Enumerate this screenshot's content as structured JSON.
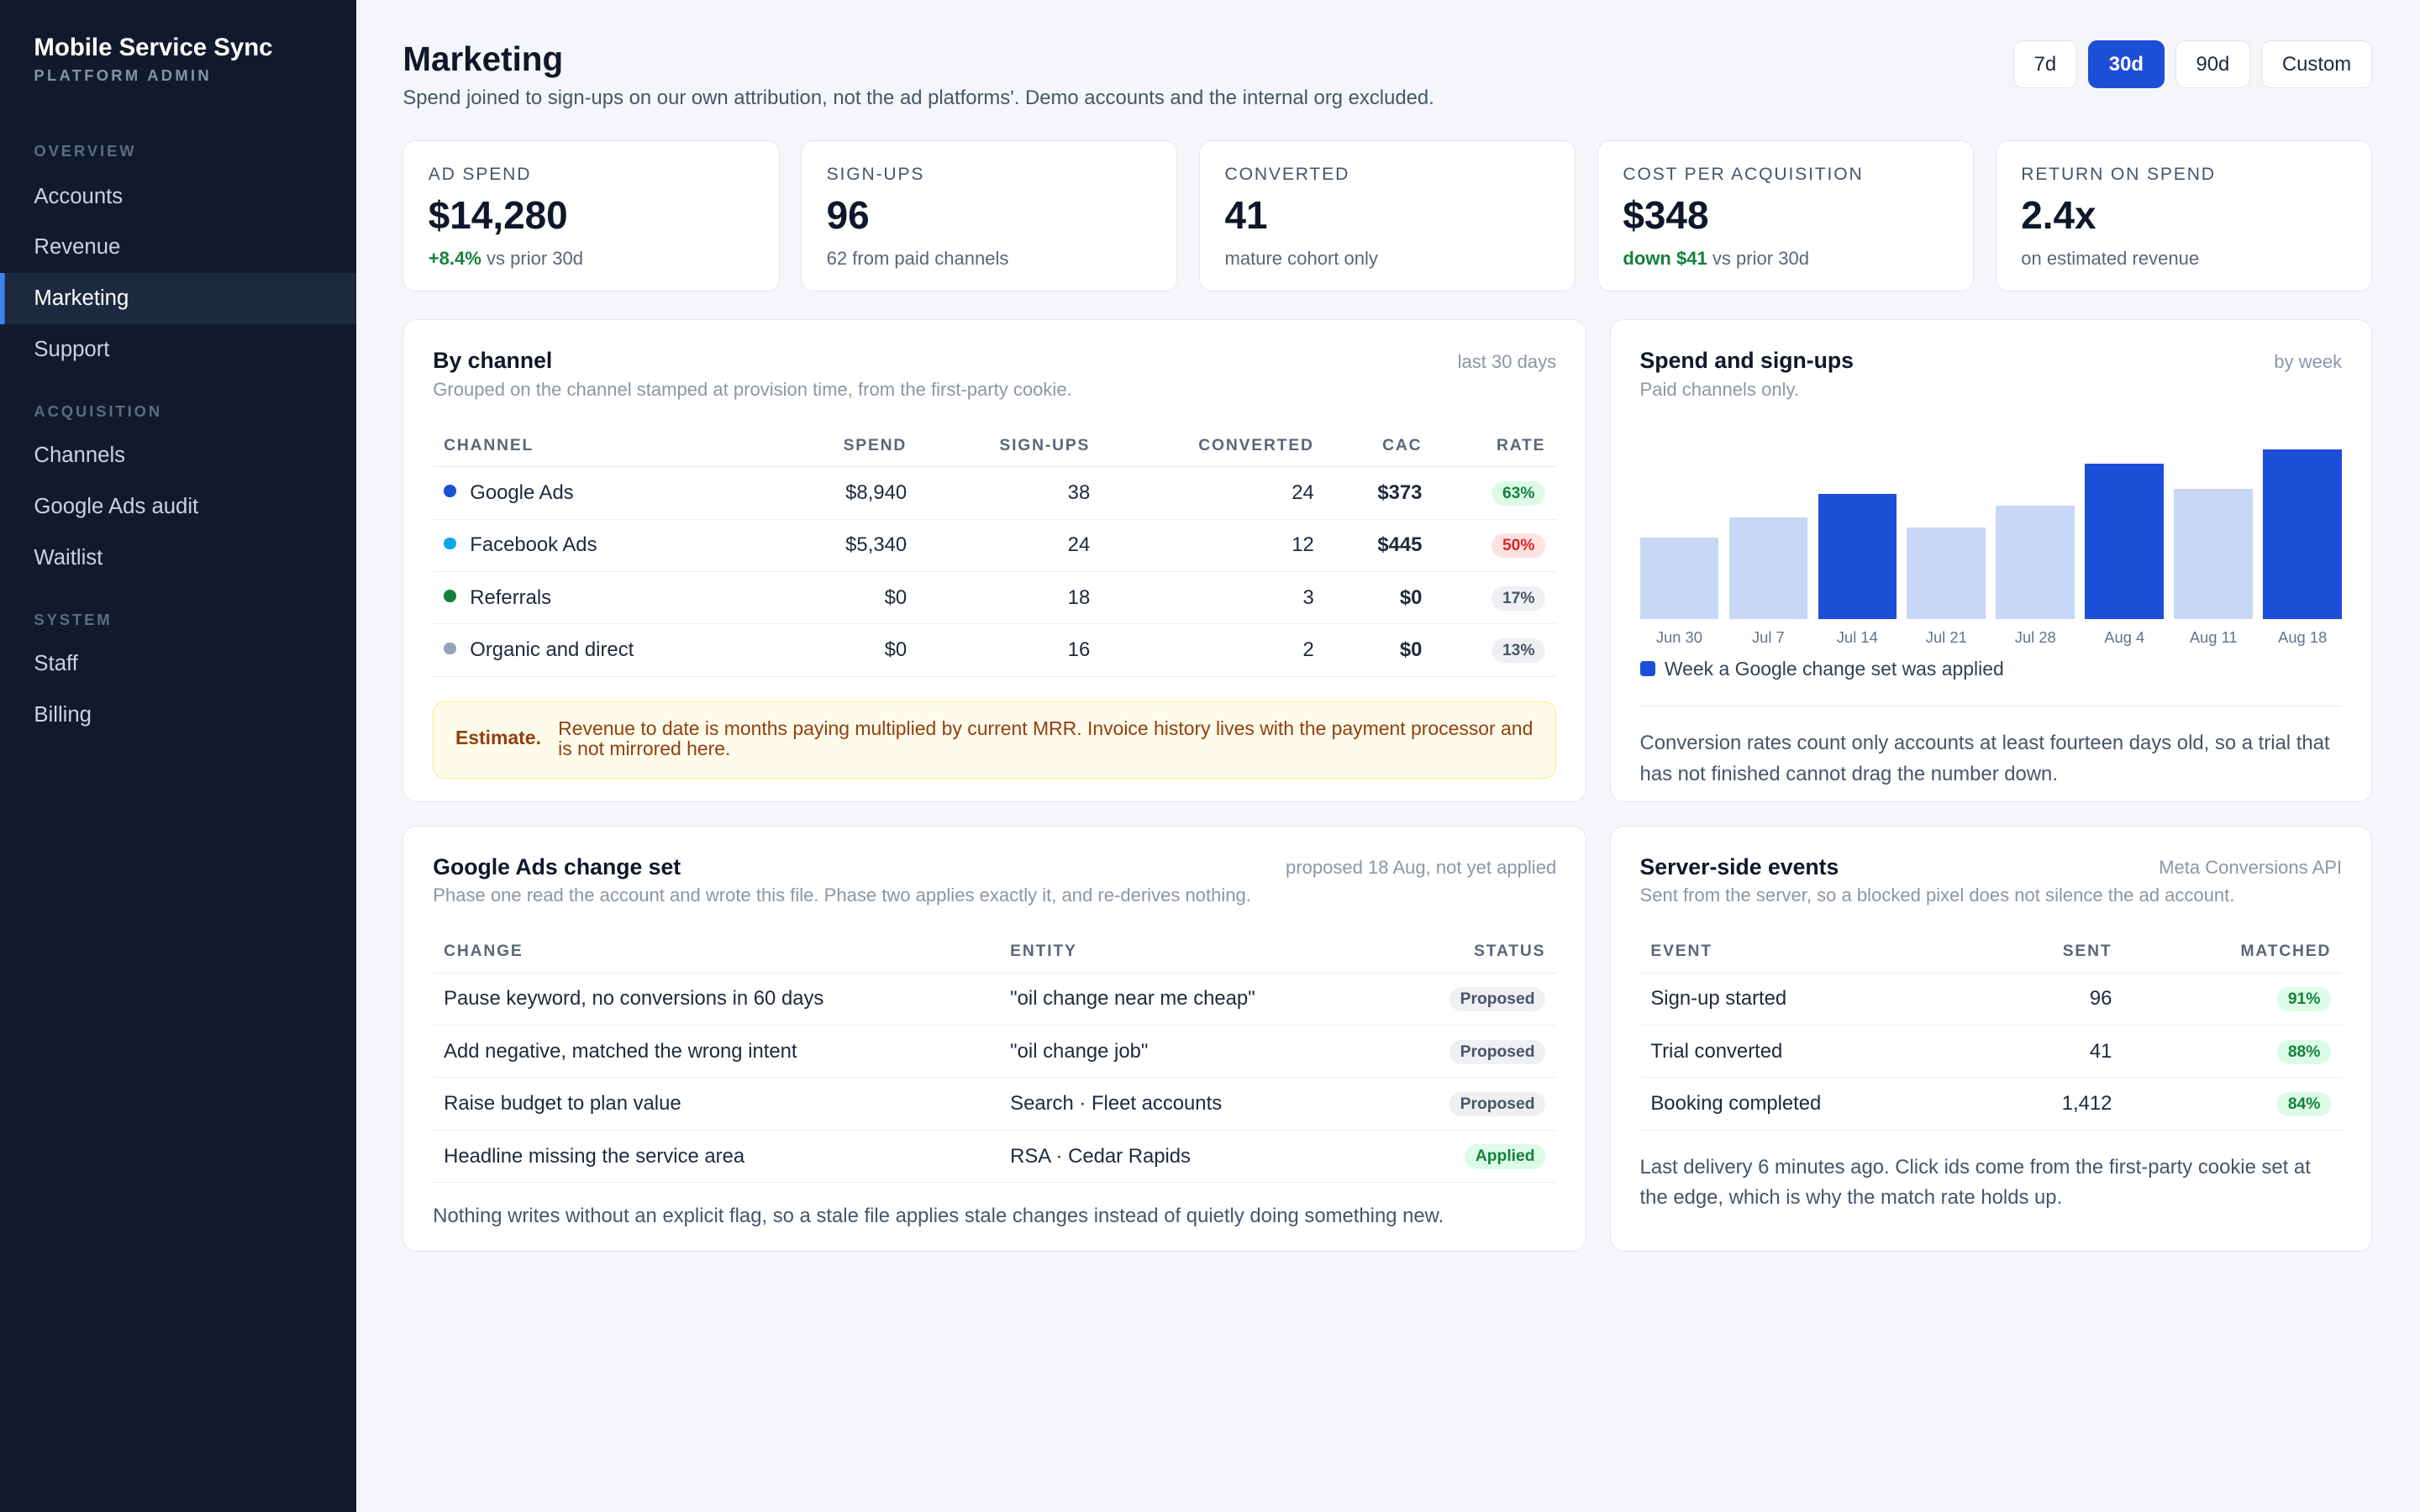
{
  "app": {
    "name": "Mobile Service Sync",
    "subtitle": "PLATFORM ADMIN"
  },
  "sidebar": {
    "sections": [
      {
        "title": "OVERVIEW",
        "items": [
          "Accounts",
          "Revenue",
          "Marketing",
          "Support"
        ]
      },
      {
        "title": "ACQUISITION",
        "items": [
          "Channels",
          "Google Ads audit",
          "Waitlist"
        ]
      },
      {
        "title": "SYSTEM",
        "items": [
          "Staff",
          "Billing"
        ]
      }
    ],
    "active": "Marketing"
  },
  "header": {
    "title": "Marketing",
    "subtitle": "Spend joined to sign-ups on our own attribution, not the ad platforms'. Demo accounts and the internal org excluded.",
    "ranges": [
      "7d",
      "30d",
      "90d",
      "Custom"
    ],
    "active_range": "30d"
  },
  "kpis": [
    {
      "label": "AD SPEND",
      "value": "$14,280",
      "delta": "+8.4%",
      "note": " vs prior 30d"
    },
    {
      "label": "SIGN-UPS",
      "value": "96",
      "delta": "",
      "note": "62 from paid channels"
    },
    {
      "label": "CONVERTED",
      "value": "41",
      "delta": "",
      "note": "mature cohort only"
    },
    {
      "label": "COST PER ACQUISITION",
      "value": "$348",
      "delta": "down $41",
      "note": " vs prior 30d"
    },
    {
      "label": "RETURN ON SPEND",
      "value": "2.4x",
      "delta": "",
      "note": "on estimated revenue"
    }
  ],
  "by_channel": {
    "title": "By channel",
    "subtitle": "Grouped on the channel stamped at provision time, from the first-party cookie.",
    "meta": "last 30 days",
    "columns": [
      "CHANNEL",
      "SPEND",
      "SIGN-UPS",
      "CONVERTED",
      "CAC",
      "RATE"
    ],
    "rows": [
      {
        "channel": "Google Ads",
        "color": "#1d4ed8",
        "spend": "$8,940",
        "signups": "38",
        "converted": "24",
        "cac": "$373",
        "rate": "63%",
        "rate_tone": "green"
      },
      {
        "channel": "Facebook Ads",
        "color": "#0ea5e9",
        "spend": "$5,340",
        "signups": "24",
        "converted": "12",
        "cac": "$445",
        "rate": "50%",
        "rate_tone": "red"
      },
      {
        "channel": "Referrals",
        "color": "#15803d",
        "spend": "$0",
        "signups": "18",
        "converted": "3",
        "cac": "$0",
        "rate": "17%",
        "rate_tone": "gray"
      },
      {
        "channel": "Organic and direct",
        "color": "#94a3b8",
        "spend": "$0",
        "signups": "16",
        "converted": "2",
        "cac": "$0",
        "rate": "13%",
        "rate_tone": "gray"
      }
    ],
    "estimate_label": "Estimate.",
    "estimate_text": "Revenue to date is months paying multiplied by current MRR. Invoice history lives with the payment processor and is not mirrored here."
  },
  "spend_chart": {
    "title": "Spend and sign-ups",
    "subtitle": "Paid channels only.",
    "meta": "by week",
    "legend": "Week a Google change set was applied",
    "note": "Conversion rates count only accounts at least fourteen days old, so a trial that has not finished cannot drag the number down.",
    "colors": {
      "highlight": "#1d4ed8",
      "normal": "#c7d7f5"
    }
  },
  "chart_data": {
    "type": "bar",
    "title": "Spend and sign-ups",
    "categories": [
      "Jun 30",
      "Jul 7",
      "Jul 14",
      "Jul 21",
      "Jul 28",
      "Aug 4",
      "Aug 11",
      "Aug 18"
    ],
    "values": [
      48,
      60,
      74,
      54,
      67,
      92,
      77,
      100
    ],
    "highlighted": [
      false,
      false,
      true,
      false,
      false,
      true,
      false,
      true
    ],
    "ylim": [
      0,
      100
    ],
    "grid": false,
    "legend_position": "bottom-left"
  },
  "change_set": {
    "title": "Google Ads change set",
    "subtitle": "Phase one read the account and wrote this file. Phase two applies exactly it, and re-derives nothing.",
    "meta": "proposed 18 Aug, not yet applied",
    "columns": [
      "CHANGE",
      "ENTITY",
      "STATUS"
    ],
    "rows": [
      {
        "change": "Pause keyword, no conversions in 60 days",
        "entity": "\"oil change near me cheap\"",
        "status": "Proposed",
        "tone": "gray"
      },
      {
        "change": "Add negative, matched the wrong intent",
        "entity": "\"oil change job\"",
        "status": "Proposed",
        "tone": "gray"
      },
      {
        "change": "Raise budget to plan value",
        "entity": "Search · Fleet accounts",
        "status": "Proposed",
        "tone": "gray"
      },
      {
        "change": "Headline missing the service area",
        "entity": "RSA · Cedar Rapids",
        "status": "Applied",
        "tone": "green"
      }
    ],
    "footer": "Nothing writes without an explicit flag, so a stale file applies stale changes instead of quietly doing something new."
  },
  "server_events": {
    "title": "Server-side events",
    "subtitle": "Sent from the server, so a blocked pixel does not silence the ad account.",
    "meta": "Meta Conversions API",
    "columns": [
      "EVENT",
      "SENT",
      "MATCHED"
    ],
    "rows": [
      {
        "event": "Sign-up started",
        "sent": "96",
        "matched": "91%"
      },
      {
        "event": "Trial converted",
        "sent": "41",
        "matched": "88%"
      },
      {
        "event": "Booking completed",
        "sent": "1,412",
        "matched": "84%"
      }
    ],
    "footer": "Last delivery 6 minutes ago. Click ids come from the first-party cookie set at the edge, which is why the match rate holds up."
  }
}
